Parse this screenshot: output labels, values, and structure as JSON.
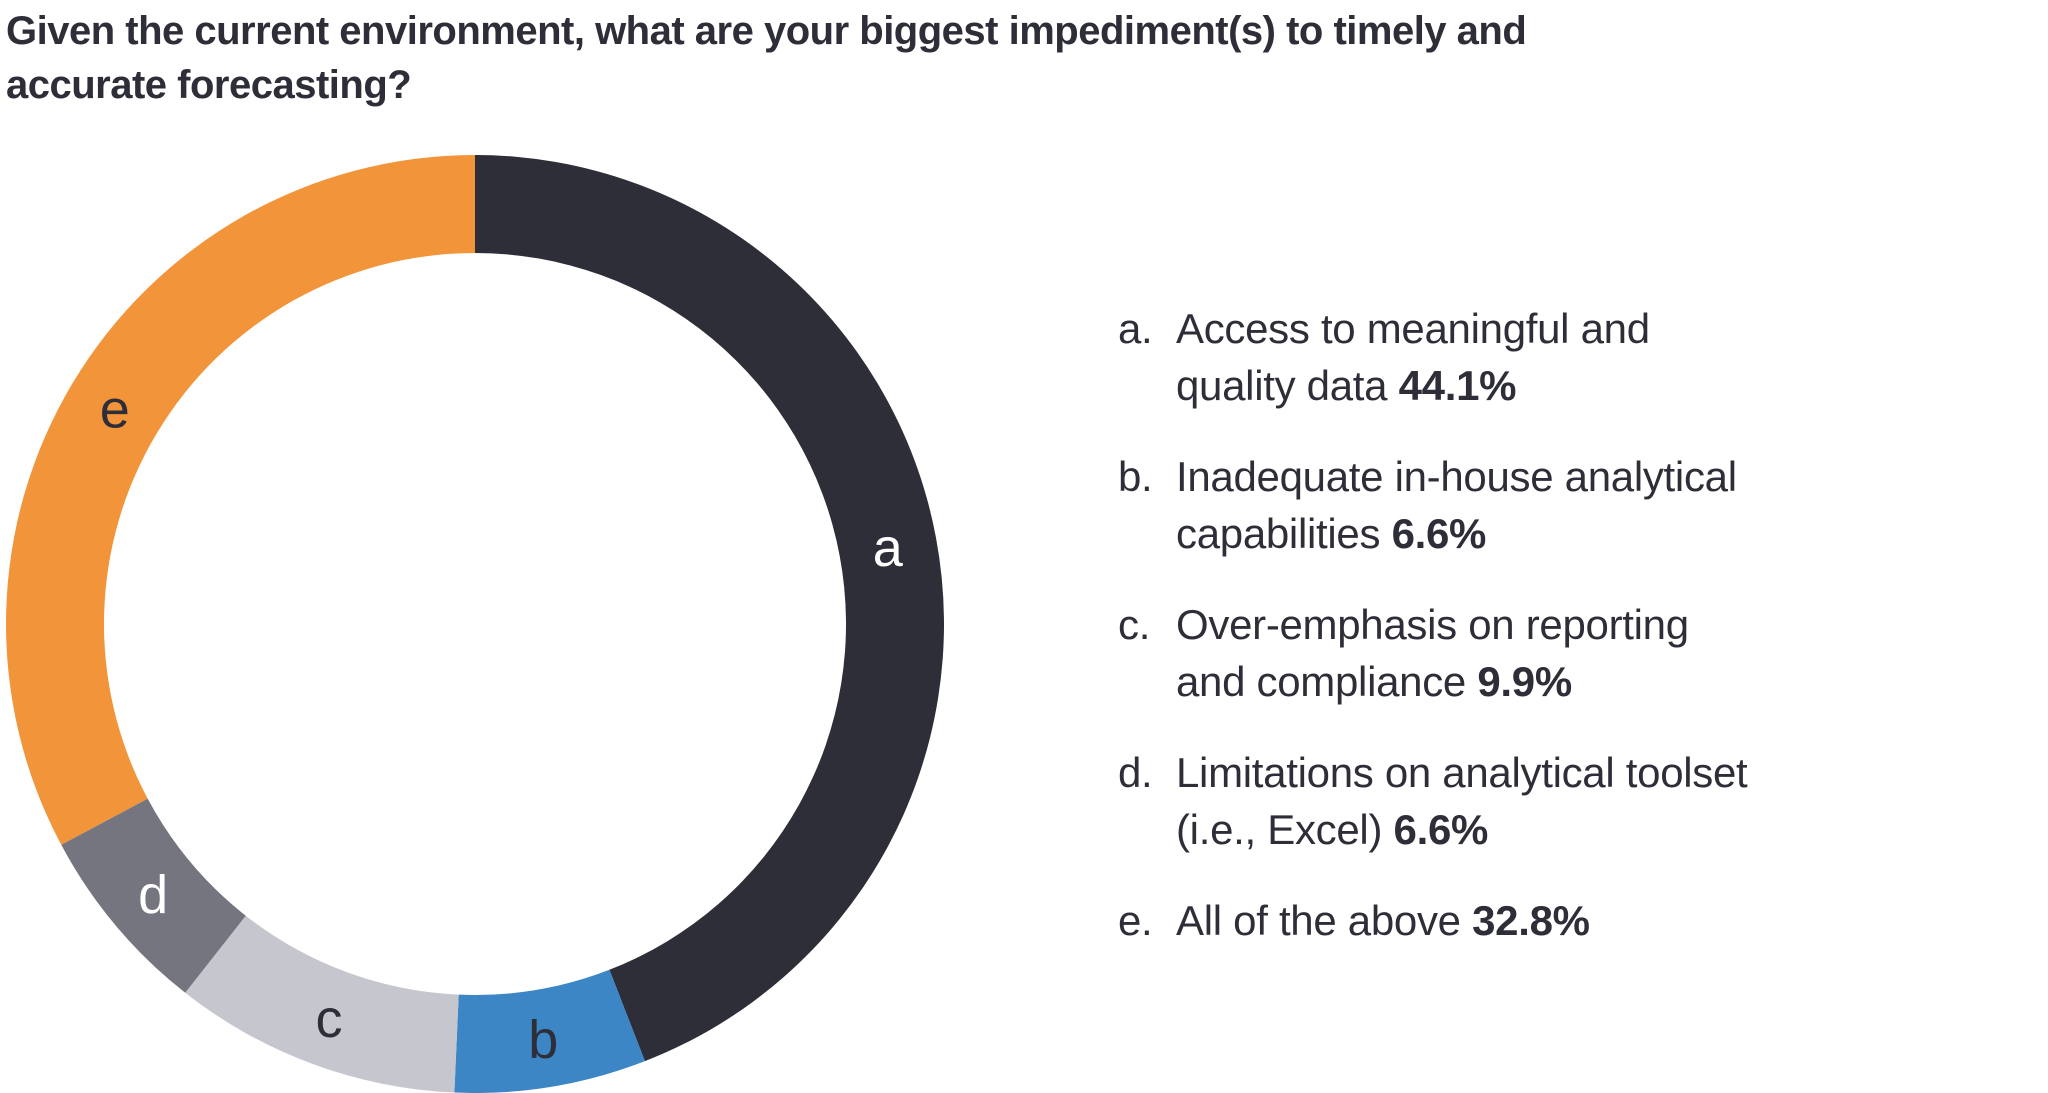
{
  "title": {
    "line1": "Given the current environment, what are your biggest impediment(s) to timely and",
    "line2": "accurate forecasting?",
    "full": "Given the current environment, what are your biggest impediments(s) to timely and accurate forecasting?"
  },
  "chart_data": {
    "type": "pie",
    "subtype": "donut",
    "title": "Given the current environment, what are your biggest impediment(s) to timely and accurate forecasting?",
    "start_angle_deg": 0,
    "direction": "clockwise",
    "legend_position": "right",
    "segments": [
      {
        "id": "a",
        "label": "Access to meaningful and quality data",
        "value": 44.1,
        "color": "#2E2E38",
        "label_color": "#FFFFFF"
      },
      {
        "id": "b",
        "label": "Inadequate in-house analytical capabilities",
        "value": 6.6,
        "color": "#3C86C5",
        "label_color": "#2E2E38"
      },
      {
        "id": "c",
        "label": "Over-emphasis on reporting and compliance",
        "value": 9.9,
        "color": "#C6C6CE",
        "label_color": "#2E2E38"
      },
      {
        "id": "d",
        "label": "Limitations on analytical toolset (i.e., Excel)",
        "value": 6.6,
        "color": "#75757F",
        "label_color": "#FFFFFF"
      },
      {
        "id": "e",
        "label": "All of the above",
        "value": 32.8,
        "color": "#F2943A",
        "label_color": "#2E2E38"
      }
    ]
  },
  "legend": {
    "items": [
      {
        "prefix": "a.",
        "line1": "Access to meaningful and",
        "line2": "quality data",
        "pct": "44.1%"
      },
      {
        "prefix": "b.",
        "line1": "Inadequate in-house analytical",
        "line2": "capabilities",
        "pct": "6.6%"
      },
      {
        "prefix": "c.",
        "line1": "Over-emphasis on reporting",
        "line2": "and compliance",
        "pct": "9.9%"
      },
      {
        "prefix": "d.",
        "line1": "Limitations on analytical toolset",
        "line2": "(i.e., Excel)",
        "pct": "6.6%"
      },
      {
        "prefix": "e.",
        "line1": "All of the above",
        "line2": "",
        "pct": "32.8%"
      }
    ]
  },
  "colors": {
    "text": "#2E2E38",
    "background": "#FFFFFF",
    "segment_a": "#2E2E38",
    "segment_b": "#3C86C5",
    "segment_c": "#C6C6CE",
    "segment_d": "#75757F",
    "segment_e": "#F2943A"
  }
}
